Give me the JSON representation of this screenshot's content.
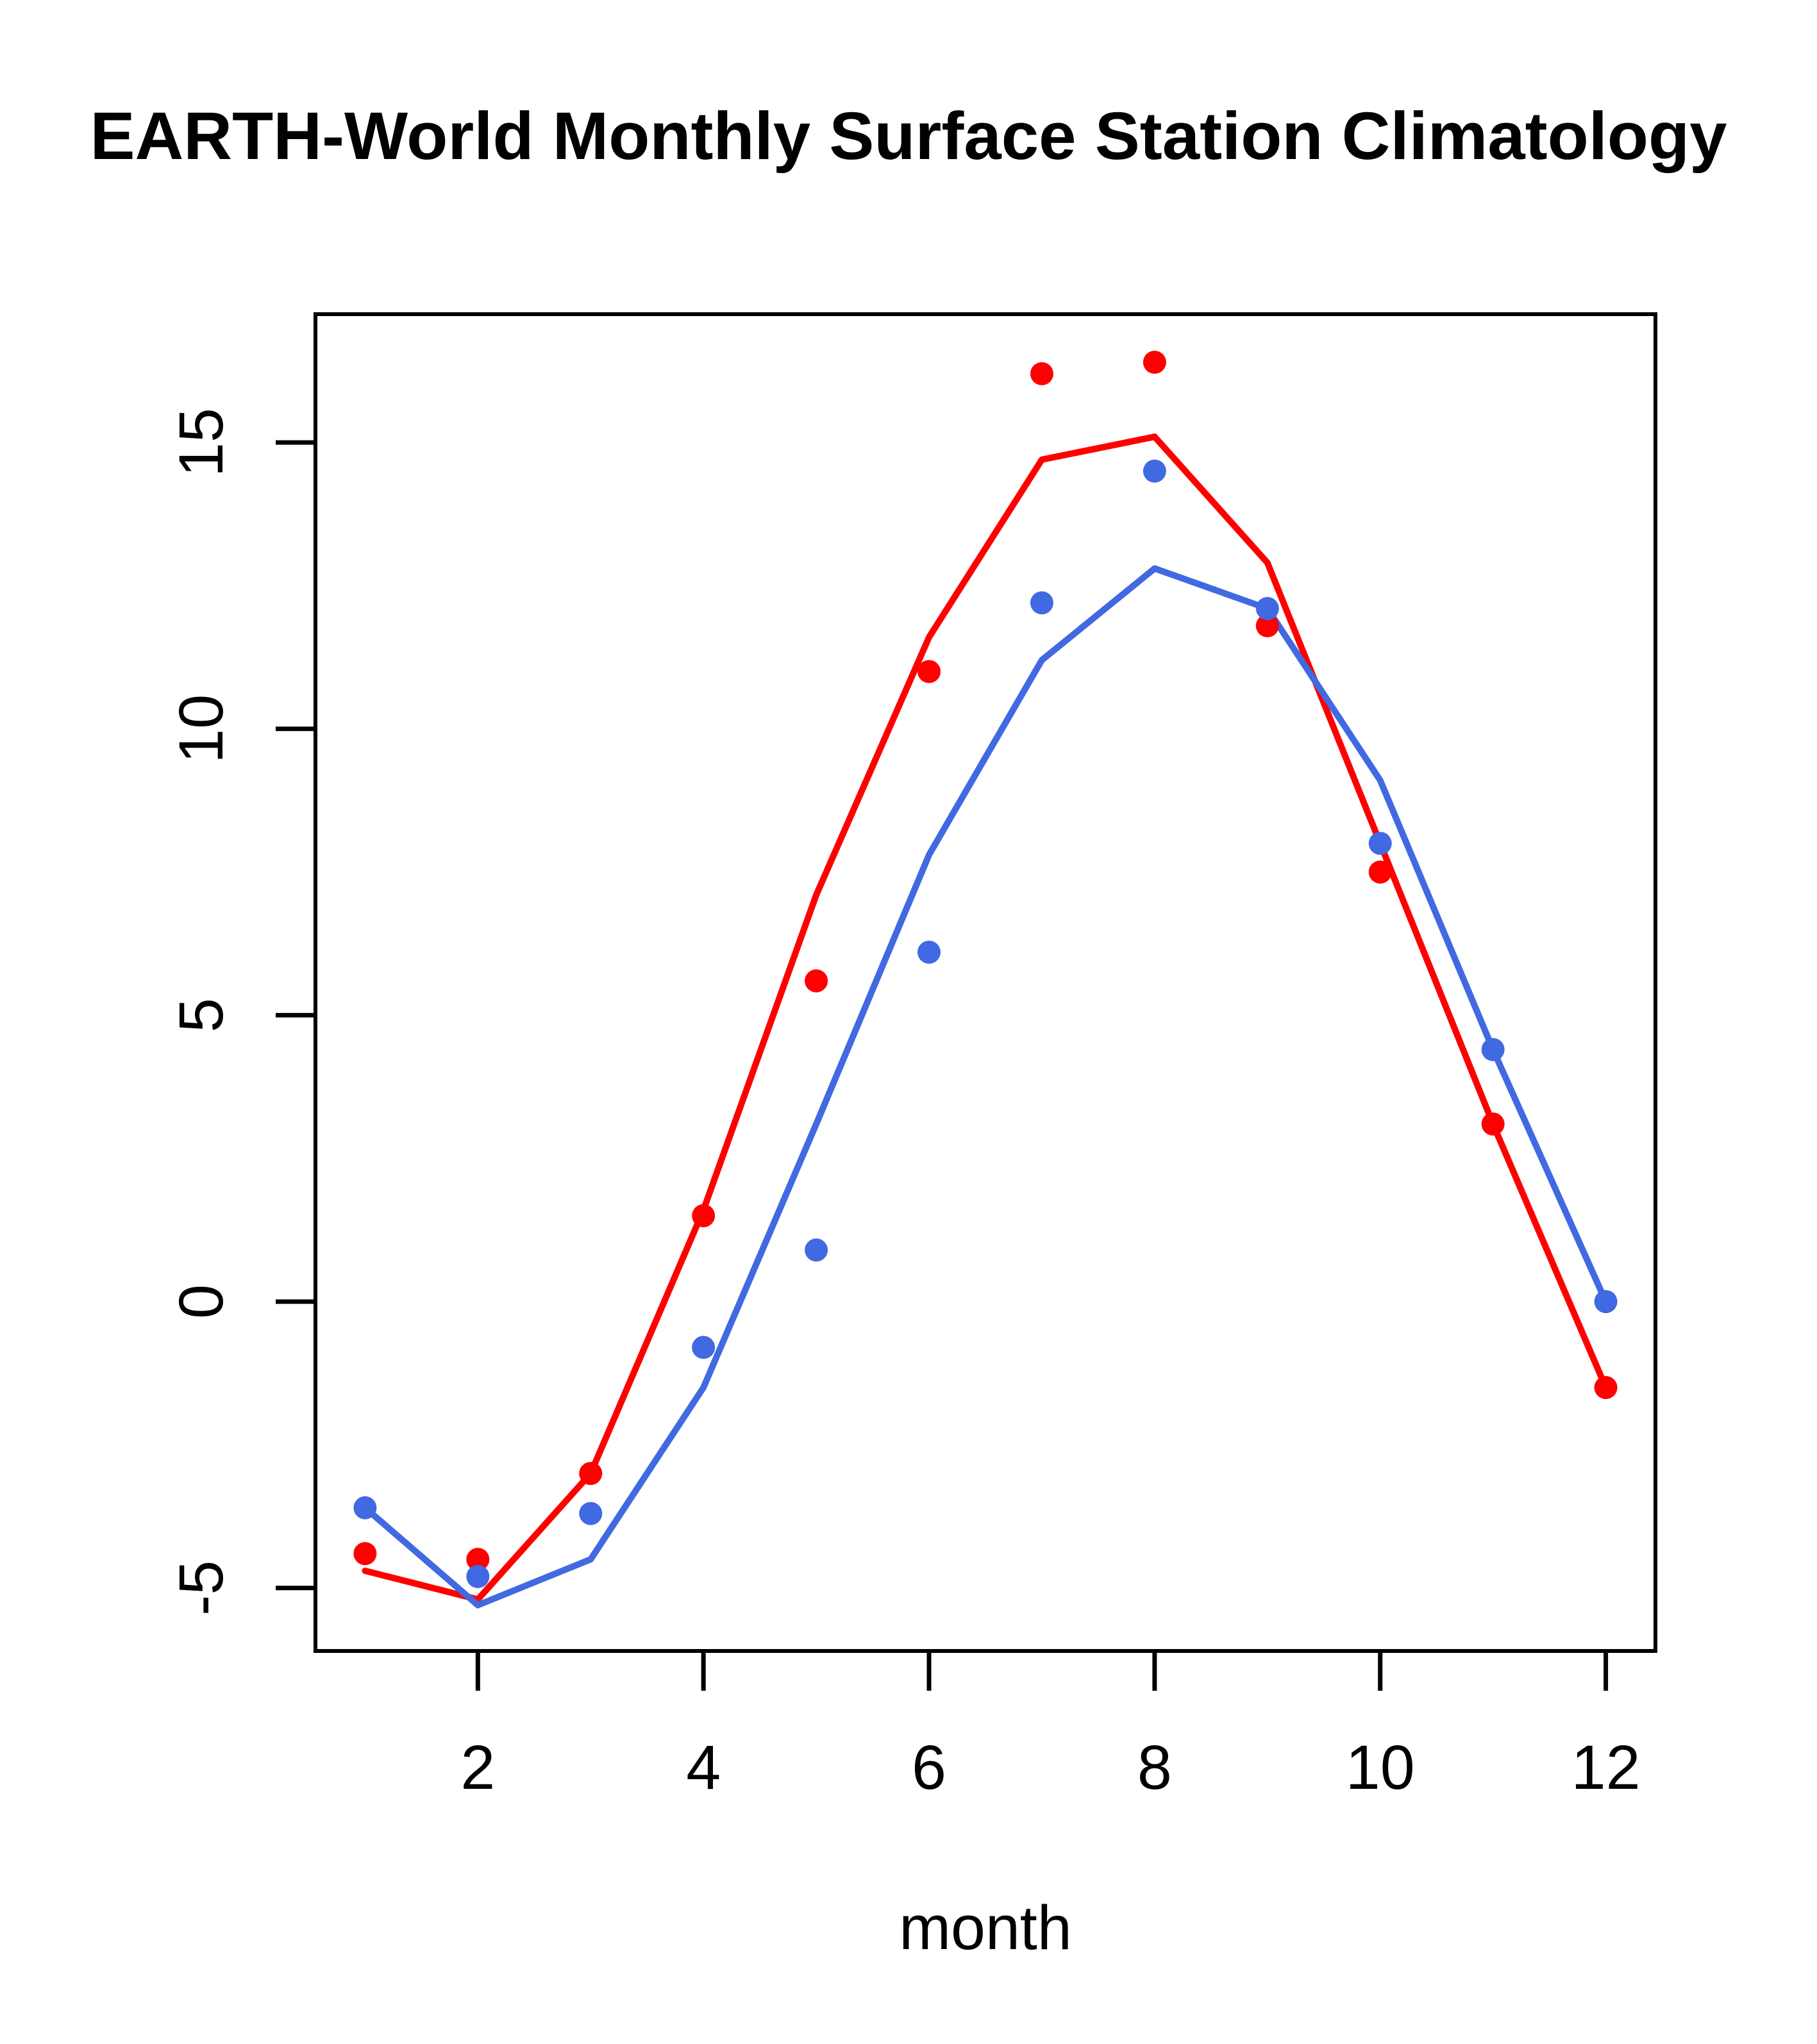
{
  "title": "EARTH-World Monthly Surface Station Climatology",
  "chart_data": {
    "type": "line",
    "subtype": "scatter-with-fitted-lines",
    "title": "EARTH-World Monthly Surface Station Climatology",
    "xlabel": "month",
    "ylabel": "",
    "x": [
      1,
      2,
      3,
      4,
      5,
      6,
      7,
      8,
      9,
      10,
      11,
      12
    ],
    "x_ticks": [
      2,
      4,
      6,
      8,
      10,
      12
    ],
    "y_ticks": [
      15,
      10,
      5,
      0,
      -5
    ],
    "xlim": [
      0.56,
      12.44
    ],
    "ylim": [
      -6.1,
      17.24
    ],
    "grid": false,
    "legend": "none",
    "colors": {
      "red": "#FF0000",
      "blue": "#4169E1",
      "axis": "#000000",
      "background": "#FFFFFF"
    },
    "series": [
      {
        "name": "red-fit-line",
        "kind": "line",
        "color": "#FF0000",
        "values": [
          -4.7,
          -5.2,
          -3.0,
          1.6,
          7.1,
          11.6,
          14.7,
          15.1,
          12.9,
          8.0,
          3.1,
          -1.5
        ]
      },
      {
        "name": "blue-fit-line",
        "kind": "line",
        "color": "#4169E1",
        "values": [
          -3.6,
          -5.3,
          -4.5,
          -1.5,
          3.1,
          7.8,
          11.2,
          12.8,
          12.1,
          9.1,
          4.4,
          0.0
        ]
      },
      {
        "name": "red-points",
        "kind": "points",
        "color": "#FF0000",
        "values": [
          -4.4,
          -4.5,
          -3.0,
          1.5,
          5.6,
          11.0,
          16.2,
          16.4,
          11.8,
          7.5,
          3.1,
          -1.5
        ]
      },
      {
        "name": "blue-points",
        "kind": "points",
        "color": "#4169E1",
        "values": [
          -3.6,
          -4.8,
          -3.7,
          -0.8,
          0.9,
          6.1,
          12.2,
          14.5,
          12.1,
          8.0,
          4.4,
          0.0
        ]
      }
    ]
  }
}
